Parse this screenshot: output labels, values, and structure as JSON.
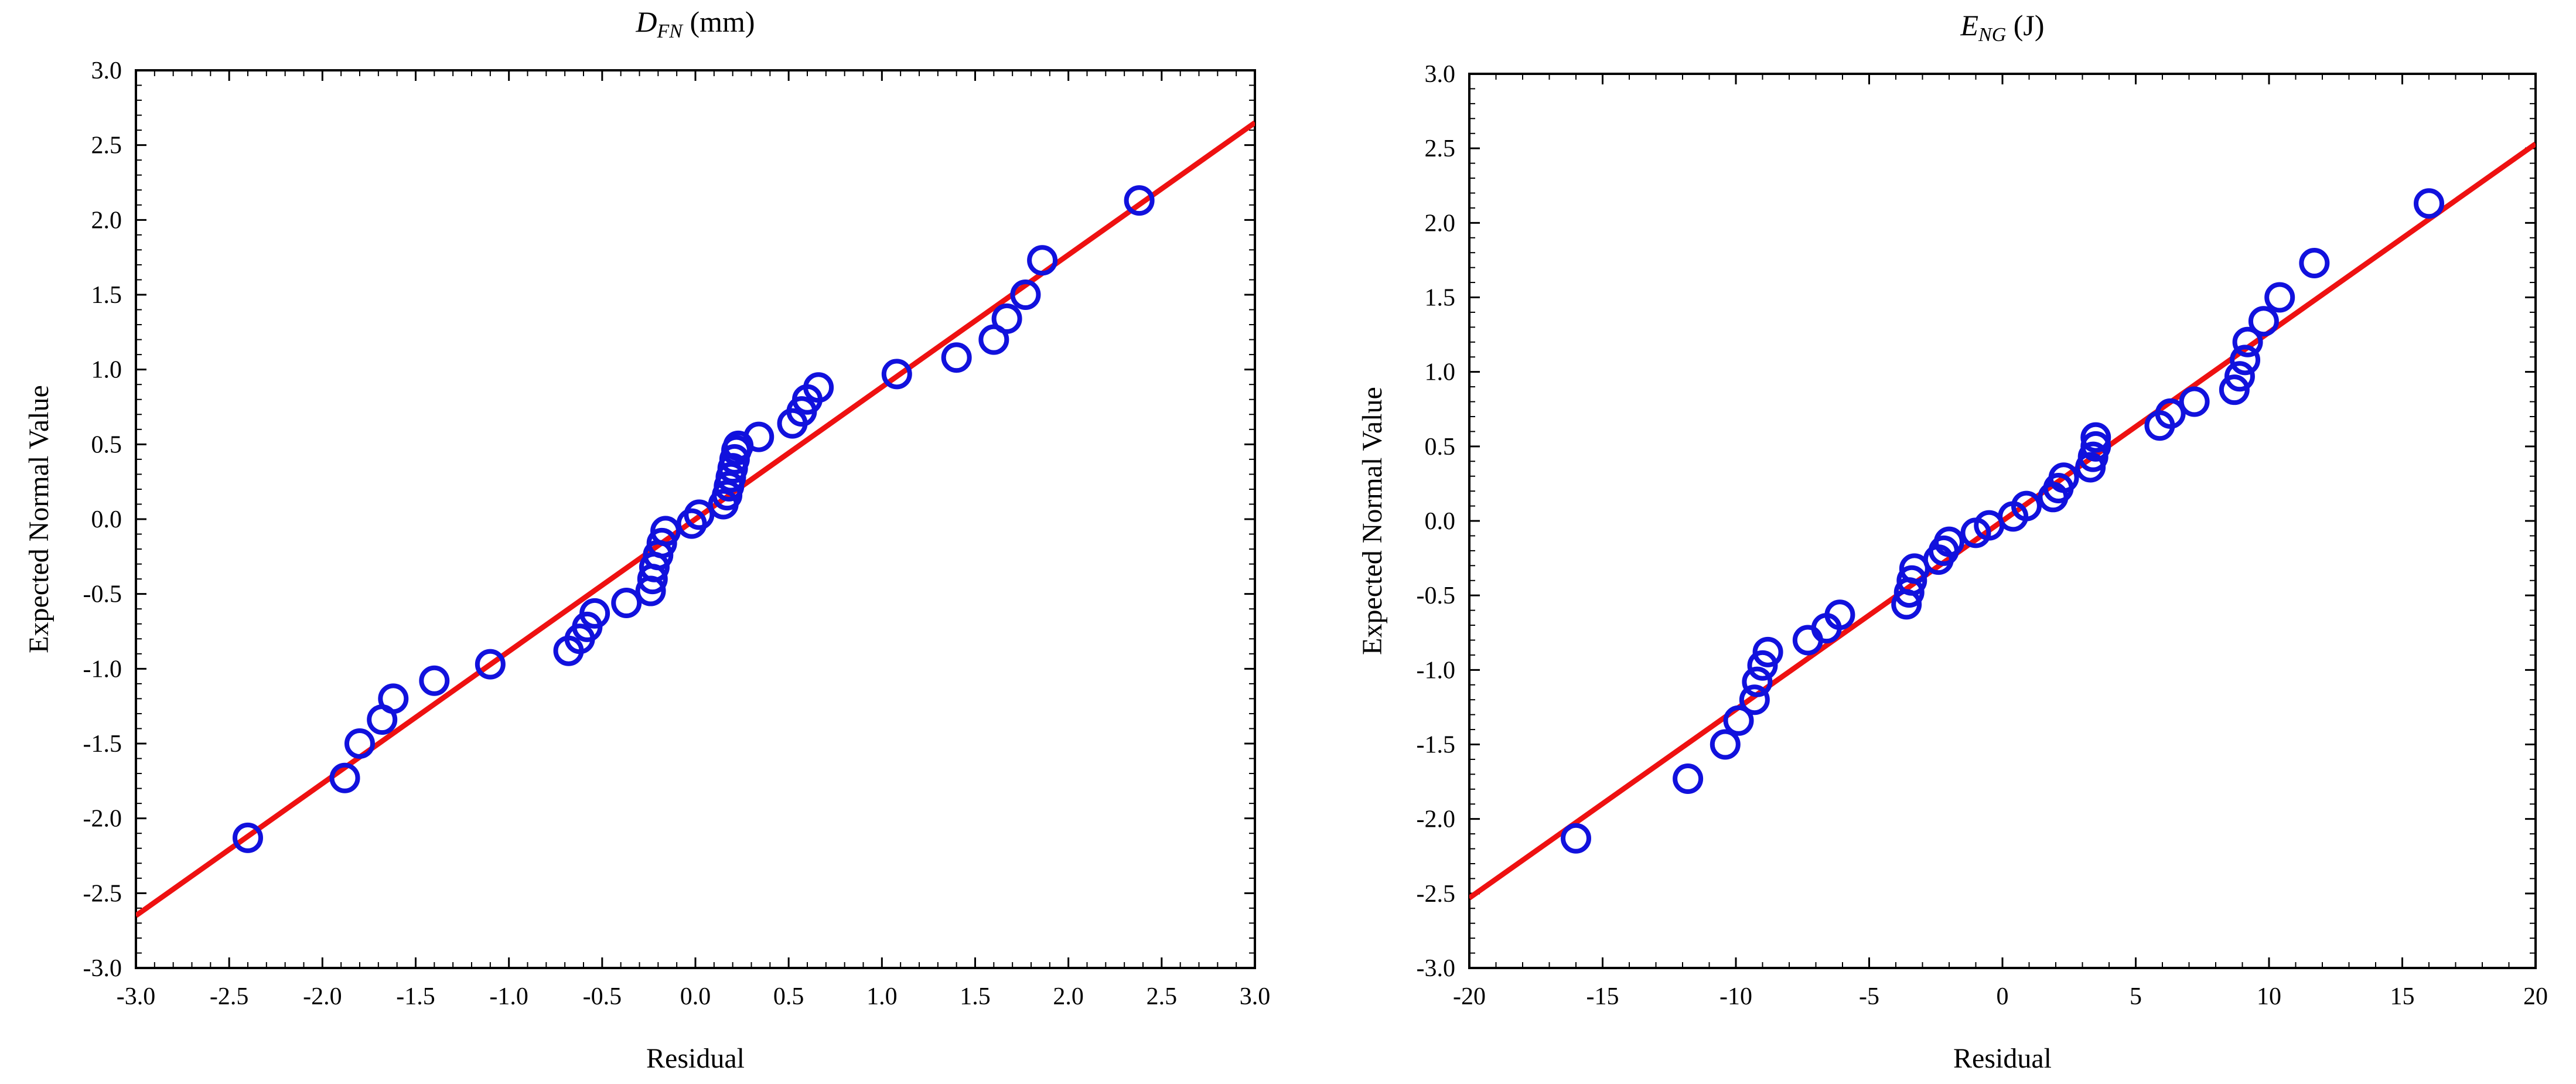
{
  "chart_data": [
    {
      "type": "scatter",
      "title_main": "D",
      "title_sub": "FN",
      "title_unit": " (mm)",
      "xlabel": "Residual",
      "ylabel": "Expected Normal Value",
      "xlim": [
        -3.0,
        3.0
      ],
      "ylim": [
        -3.0,
        3.0
      ],
      "xticks": [
        "-3.0",
        "-2.5",
        "-2.0",
        "-1.5",
        "-1.0",
        "-0.5",
        "0.0",
        "0.5",
        "1.0",
        "1.5",
        "2.0",
        "2.5",
        "3.0"
      ],
      "yticks": [
        "3.0",
        "2.5",
        "2.0",
        "1.5",
        "1.0",
        "0.5",
        "0.0",
        "-0.5",
        "-1.0",
        "-1.5",
        "-2.0",
        "-2.5",
        "-3.0"
      ],
      "fit_line": {
        "x": [
          -3.0,
          3.0
        ],
        "y": [
          -2.65,
          2.65
        ]
      },
      "points": {
        "x": [
          -2.4,
          -1.88,
          -1.8,
          -1.68,
          -1.62,
          -1.4,
          -1.1,
          -0.68,
          -0.62,
          -0.58,
          -0.54,
          -0.37,
          -0.24,
          -0.23,
          -0.22,
          -0.2,
          -0.18,
          -0.16,
          -0.02,
          0.02,
          0.15,
          0.17,
          0.18,
          0.19,
          0.2,
          0.21,
          0.22,
          0.23,
          0.34,
          0.52,
          0.57,
          0.6,
          0.66,
          1.08,
          1.4,
          1.6,
          1.67,
          1.77,
          1.86,
          2.38
        ],
        "y": [
          -2.13,
          -1.73,
          -1.5,
          -1.34,
          -1.2,
          -1.08,
          -0.97,
          -0.88,
          -0.8,
          -0.72,
          -0.63,
          -0.56,
          -0.48,
          -0.4,
          -0.32,
          -0.24,
          -0.16,
          -0.08,
          -0.03,
          0.03,
          0.1,
          0.16,
          0.22,
          0.28,
          0.34,
          0.4,
          0.46,
          0.49,
          0.55,
          0.64,
          0.72,
          0.8,
          0.88,
          0.97,
          1.08,
          1.2,
          1.34,
          1.5,
          1.73,
          2.13
        ]
      },
      "colors": {
        "line": "#ee1111",
        "points": "#1111dd"
      }
    },
    {
      "type": "scatter",
      "title_main": "E",
      "title_sub": "NG",
      "title_unit": " (J)",
      "xlabel": "Residual",
      "ylabel": "Expected Normal Value",
      "xlim": [
        -20,
        20
      ],
      "ylim": [
        -3.0,
        3.0
      ],
      "xticks": [
        "-20",
        "-15",
        "-10",
        "-5",
        "0",
        "5",
        "10",
        "15",
        "20"
      ],
      "yticks": [
        "3.0",
        "2.5",
        "2.0",
        "1.5",
        "1.0",
        "0.5",
        "0.0",
        "-0.5",
        "-1.0",
        "-1.5",
        "-2.0",
        "-2.5",
        "-3.0"
      ],
      "fit_line": {
        "x": [
          -20,
          20
        ],
        "y": [
          -2.53,
          2.53
        ]
      },
      "points": {
        "x": [
          -16.0,
          -11.8,
          -10.4,
          -9.9,
          -9.3,
          -9.2,
          -9.0,
          -8.8,
          -7.3,
          -6.6,
          -6.1,
          -3.6,
          -3.5,
          -3.4,
          -3.3,
          -2.4,
          -2.2,
          -2.0,
          -1.0,
          -0.5,
          0.4,
          0.9,
          1.9,
          2.1,
          2.3,
          3.3,
          3.4,
          3.5,
          3.5,
          5.9,
          6.3,
          7.2,
          8.7,
          8.9,
          9.1,
          9.2,
          9.8,
          10.4,
          11.7,
          16.0
        ],
        "y": [
          -2.13,
          -1.73,
          -1.5,
          -1.34,
          -1.2,
          -1.08,
          -0.97,
          -0.88,
          -0.8,
          -0.72,
          -0.63,
          -0.56,
          -0.48,
          -0.4,
          -0.32,
          -0.26,
          -0.2,
          -0.14,
          -0.08,
          -0.03,
          0.03,
          0.1,
          0.16,
          0.22,
          0.29,
          0.36,
          0.43,
          0.5,
          0.56,
          0.64,
          0.72,
          0.8,
          0.88,
          0.97,
          1.08,
          1.2,
          1.34,
          1.5,
          1.73,
          2.13
        ]
      },
      "colors": {
        "line": "#ee1111",
        "points": "#1111dd"
      }
    }
  ]
}
